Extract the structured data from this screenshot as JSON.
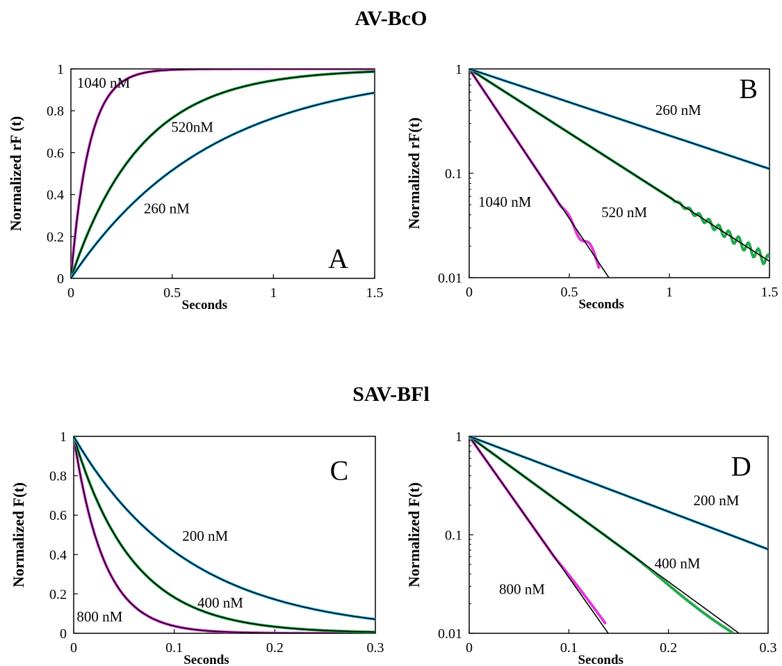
{
  "titles": {
    "top": "AV-BcO",
    "bottom": "SAV-BFl"
  },
  "chart_data": [
    {
      "type": "line",
      "panel": "A",
      "xlabel": "Seconds",
      "ylabel": "Normalized  rF (t)",
      "xlim": [
        0,
        1.5
      ],
      "ylim": [
        0,
        1
      ],
      "yscale": "linear",
      "xticks": [
        "0",
        "0.5",
        "1",
        "1.5"
      ],
      "yticks": [
        "0",
        "0.2",
        "0.4",
        "0.6",
        "0.8",
        "1"
      ],
      "series": [
        {
          "name": "1040 nM",
          "color": "#e03ad8",
          "model": "rise",
          "rate": 11.0
        },
        {
          "name": "520nM",
          "color": "#22a84c",
          "model": "rise",
          "rate": 2.9
        },
        {
          "name": "260 nM",
          "color": "#31b6e8",
          "model": "rise",
          "rate": 1.45
        }
      ]
    },
    {
      "type": "line",
      "panel": "B",
      "xlabel": "Seconds",
      "ylabel": "Normalized rF(t)",
      "xlim": [
        0,
        1.5
      ],
      "ylim": [
        0.01,
        1
      ],
      "yscale": "log",
      "xticks": [
        "0",
        "0.5",
        "1",
        "1.5"
      ],
      "yticks": [
        "0.01",
        "0.1",
        "1"
      ],
      "series": [
        {
          "name": "1040 nM",
          "color": "#e03ad8",
          "model": "decay",
          "rate": 6.6,
          "data_end": 0.65
        },
        {
          "name": "520 nM",
          "color": "#22a84c",
          "model": "decay",
          "rate": 2.83,
          "data_end": 1.5
        },
        {
          "name": "260 nM",
          "color": "#31b6e8",
          "model": "decay",
          "rate": 1.47,
          "data_end": 1.5
        }
      ]
    },
    {
      "type": "line",
      "panel": "C",
      "xlabel": "Seconds",
      "ylabel": "Normalized  F(t)",
      "xlim": [
        0,
        0.3
      ],
      "ylim": [
        0,
        1
      ],
      "yscale": "linear",
      "xticks": [
        "0",
        "0.1",
        "0.2",
        "0.3"
      ],
      "yticks": [
        "0",
        "0.2",
        "0.4",
        "0.6",
        "0.8",
        "1"
      ],
      "series": [
        {
          "name": "800 nM",
          "color": "#e03ad8",
          "model": "decay",
          "rate": 33.0
        },
        {
          "name": "400 nM",
          "color": "#22a84c",
          "model": "decay",
          "rate": 17.0
        },
        {
          "name": "200 nM",
          "color": "#31b6e8",
          "model": "decay",
          "rate": 8.8
        }
      ]
    },
    {
      "type": "line",
      "panel": "D",
      "xlabel": "Seconds",
      "ylabel": "Normalized F(t)",
      "xlim": [
        0,
        0.3
      ],
      "ylim": [
        0.01,
        1
      ],
      "yscale": "log",
      "xticks": [
        "0",
        "0.1",
        "0.2",
        "0.3"
      ],
      "yticks": [
        "0.01",
        "0.1",
        "1"
      ],
      "series": [
        {
          "name": "800 nM",
          "color": "#e03ad8",
          "model": "decay",
          "rate": 33.0,
          "data_end": 0.137
        },
        {
          "name": "400 nM",
          "color": "#22a84c",
          "model": "decay",
          "rate": 17.0,
          "data_end": 0.265
        },
        {
          "name": "200 nM",
          "color": "#31b6e8",
          "model": "decay",
          "rate": 8.8,
          "data_end": 0.3
        }
      ]
    }
  ]
}
